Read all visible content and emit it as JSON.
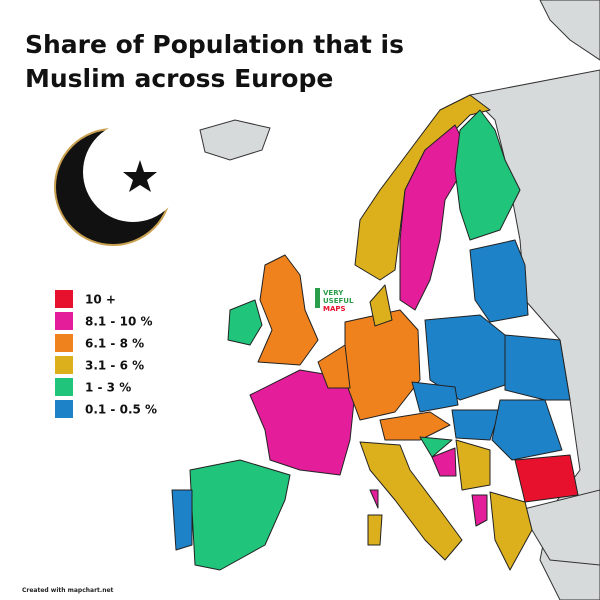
{
  "title_lines": [
    "Share of Population that is",
    "Muslim across Europe"
  ],
  "legend": {
    "items": [
      {
        "label": "10 +",
        "color": "#e8112d"
      },
      {
        "label": "8.1 - 10 %",
        "color": "#e41d9b"
      },
      {
        "label": "6.1 - 8 %",
        "color": "#f0821e"
      },
      {
        "label": "3.1 - 6 %",
        "color": "#dcb01c"
      },
      {
        "label": "1 - 3 %",
        "color": "#20c47a"
      },
      {
        "label": "0.1 - 0.5 %",
        "color": "#1e82c8"
      }
    ]
  },
  "watermark": [
    "VERY",
    "USEFUL",
    "MAPS"
  ],
  "footer": "Created with mapchart.net"
}
